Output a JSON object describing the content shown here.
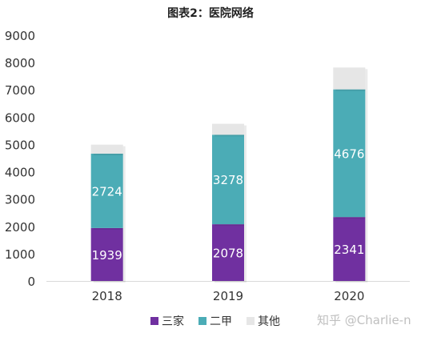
{
  "chart_data": {
    "type": "bar",
    "stacked": true,
    "title": "图表2：医院网络",
    "categories": [
      "2018",
      "2019",
      "2020"
    ],
    "series": [
      {
        "name": "三家",
        "color": "#7030A0",
        "values": [
          1939,
          2078,
          2341
        ],
        "labels": [
          "1939",
          "2078",
          "2341"
        ]
      },
      {
        "name": "二甲",
        "color": "#4BACB6",
        "values": [
          2724,
          3278,
          4676
        ],
        "labels": [
          "2724",
          "3278",
          "4676"
        ]
      },
      {
        "name": "其他",
        "color": "#E6E6E6",
        "values": [
          330,
          400,
          800
        ],
        "labels": [
          "",
          "",
          ""
        ]
      }
    ],
    "ylim": [
      0,
      9000
    ],
    "yticks": [
      "0",
      "1000",
      "2000",
      "3000",
      "4000",
      "5000",
      "6000",
      "7000",
      "8000",
      "9000"
    ],
    "xlabel": "",
    "ylabel": "",
    "grid": false,
    "legend_position": "bottom"
  },
  "watermark": "知乎 @Charlie-n"
}
